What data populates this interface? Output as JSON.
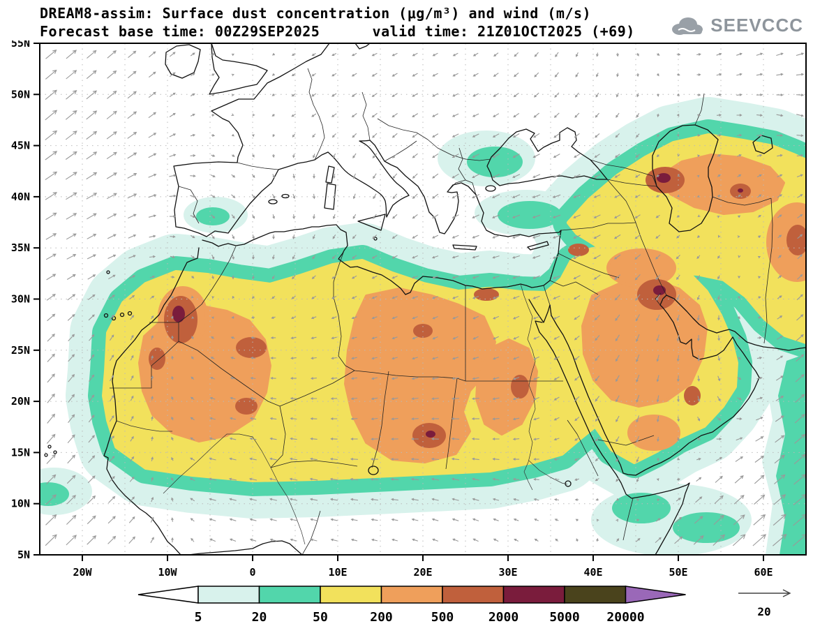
{
  "header": {
    "title_line1": "DREAM8-assim: Surface dust concentration (μg/m³) and wind (m/s)",
    "title_line2": "Forecast base time: 00Z29SEP2025      valid time: 21Z01OCT2025 (+69)"
  },
  "logo": {
    "text": "SEEVCCC"
  },
  "chart_data": {
    "type": "heatmap",
    "title": "DREAM8-assim: Surface dust concentration (μg/m³) and wind (m/s)",
    "model": "DREAM8-assim",
    "forecast_base_time": "00Z29SEP2025",
    "valid_time": "21Z01OCT2025",
    "forecast_hour": "+69",
    "units_concentration": "μg/m³",
    "units_wind": "m/s",
    "lon_range_deg": [
      -25,
      65
    ],
    "lat_range_deg": [
      5,
      55
    ],
    "x_ticks": [
      "20W",
      "10W",
      "0",
      "10E",
      "20E",
      "30E",
      "40E",
      "50E",
      "60E"
    ],
    "y_ticks": [
      "55N",
      "50N",
      "45N",
      "40N",
      "35N",
      "30N",
      "25N",
      "20N",
      "15N",
      "10N",
      "5N"
    ],
    "colorbar": {
      "levels": [
        "5",
        "20",
        "50",
        "200",
        "500",
        "2000",
        "5000",
        "20000"
      ],
      "colors": [
        "#ffffff",
        "#d8f2ec",
        "#52d6ab",
        "#f2e15c",
        "#ef9f5b",
        "#c0603c",
        "#7a1c3c",
        "#4a431c",
        "#9a68b8"
      ]
    },
    "wind_reference": {
      "value": "20",
      "units": "m/s"
    },
    "wind_grid_uv": [
      [
        [
          2.2,
          1.8
        ],
        [
          1.6,
          1.4
        ],
        [
          0.6,
          0.4
        ],
        [
          -0.6,
          -0.4
        ],
        [
          -1.0,
          -0.4
        ],
        [
          -0.9,
          -0.5
        ],
        [
          -0.6,
          -0.9
        ],
        [
          0.4,
          -0.5
        ],
        [
          1.0,
          0.4
        ],
        [
          1.5,
          0.6
        ]
      ],
      [
        [
          2.4,
          2.0
        ],
        [
          1.9,
          1.5
        ],
        [
          0.5,
          0.1
        ],
        [
          -0.8,
          -0.5
        ],
        [
          -1.0,
          -0.8
        ],
        [
          -1.2,
          -0.5
        ],
        [
          -1.0,
          -0.9
        ],
        [
          -0.5,
          -0.8
        ],
        [
          0.9,
          0.1
        ],
        [
          1.4,
          -0.4
        ]
      ],
      [
        [
          2.4,
          1.6
        ],
        [
          1.9,
          1.0
        ],
        [
          0.9,
          -0.5
        ],
        [
          0.4,
          -0.9
        ],
        [
          -0.6,
          -1.0
        ],
        [
          -1.4,
          -0.8
        ],
        [
          -1.5,
          -0.5
        ],
        [
          -1.0,
          -0.5
        ],
        [
          0.5,
          0.5
        ],
        [
          1.1,
          0.6
        ]
      ],
      [
        [
          2.0,
          1.1
        ],
        [
          1.4,
          0.6
        ],
        [
          0.4,
          -0.9
        ],
        [
          -0.5,
          -0.8
        ],
        [
          -1.0,
          -0.5
        ],
        [
          -1.2,
          -0.3
        ],
        [
          -1.5,
          -0.5
        ],
        [
          -1.1,
          -1.0
        ],
        [
          -0.4,
          -0.6
        ],
        [
          1.0,
          1.0
        ]
      ],
      [
        [
          1.6,
          1.5
        ],
        [
          0.6,
          1.0
        ],
        [
          -0.5,
          0.4
        ],
        [
          -1.0,
          -0.2
        ],
        [
          -1.0,
          -0.3
        ],
        [
          -1.0,
          -0.5
        ],
        [
          -1.1,
          -0.5
        ],
        [
          -0.6,
          -1.4
        ],
        [
          0.1,
          -1.0
        ],
        [
          1.5,
          1.4
        ]
      ],
      [
        [
          1.6,
          2.0
        ],
        [
          0.6,
          1.0
        ],
        [
          -1.0,
          0.3
        ],
        [
          -1.2,
          0.1
        ],
        [
          -1.2,
          -0.2
        ],
        [
          -1.5,
          0.0
        ],
        [
          -1.0,
          -0.5
        ],
        [
          -0.5,
          -1.4
        ],
        [
          0.6,
          -0.9
        ],
        [
          2.0,
          1.9
        ]
      ],
      [
        [
          2.0,
          2.0
        ],
        [
          1.0,
          1.0
        ],
        [
          -1.4,
          0.3
        ],
        [
          -1.5,
          0.3
        ],
        [
          -1.5,
          0.1
        ],
        [
          -1.4,
          0.3
        ],
        [
          -1.0,
          0.1
        ],
        [
          -0.4,
          -0.9
        ],
        [
          1.5,
          1.4
        ],
        [
          2.5,
          2.1
        ]
      ],
      [
        [
          2.5,
          2.4
        ],
        [
          1.5,
          1.5
        ],
        [
          -1.0,
          0.5
        ],
        [
          -1.2,
          0.3
        ],
        [
          -1.0,
          0.3
        ],
        [
          -1.0,
          0.5
        ],
        [
          -0.5,
          0.5
        ],
        [
          1.0,
          1.0
        ],
        [
          2.6,
          2.4
        ],
        [
          3.0,
          2.5
        ]
      ]
    ]
  }
}
